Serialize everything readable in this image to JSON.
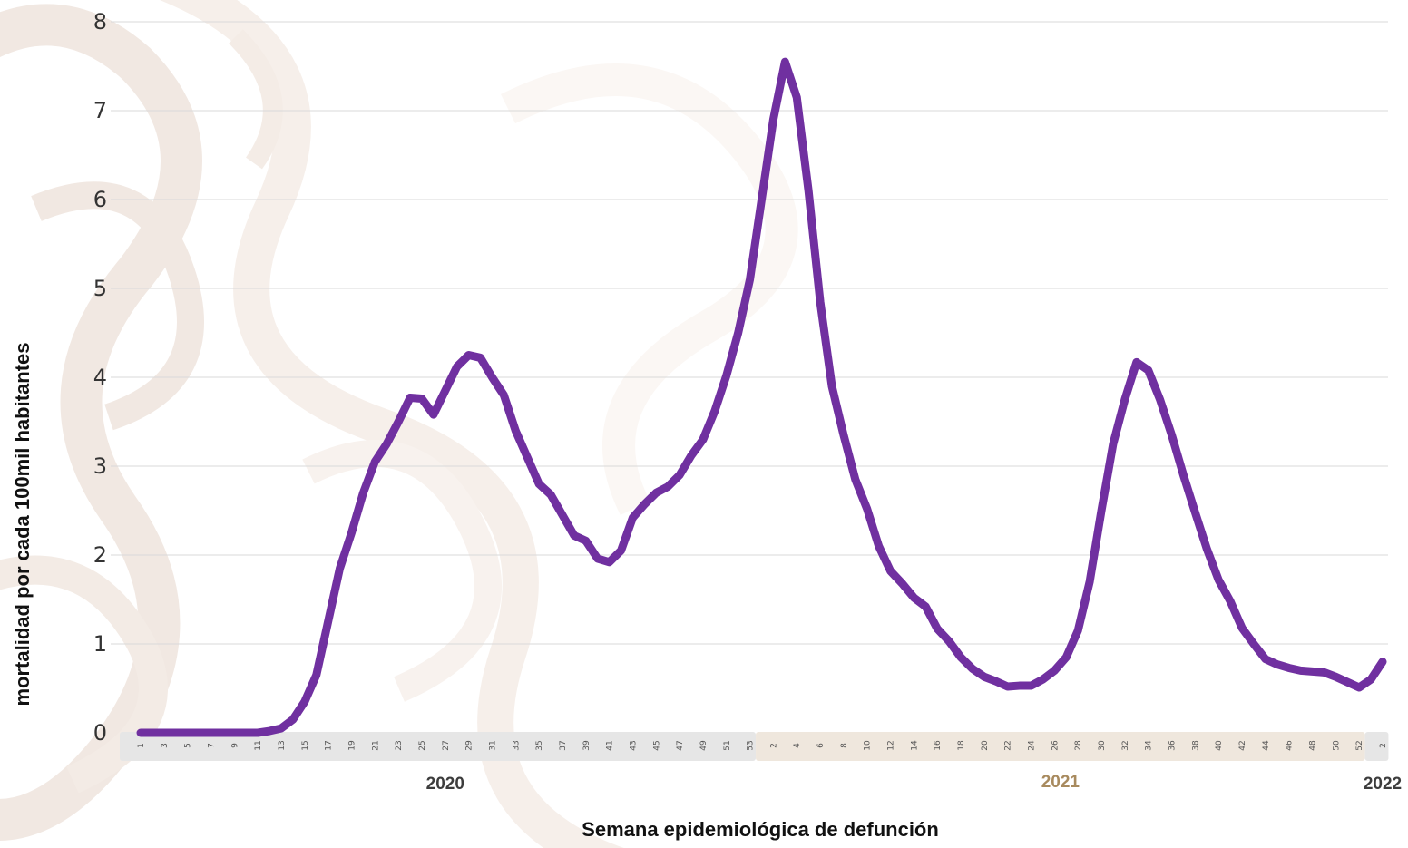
{
  "chart_data": {
    "type": "line",
    "title": "",
    "xlabel": "Semana epidemiológica de defunción",
    "ylabel": "mortalidad por cada 100mil habitantes",
    "ylim": [
      0,
      8
    ],
    "yticks": [
      0,
      1,
      2,
      3,
      4,
      5,
      6,
      7,
      8
    ],
    "grid": true,
    "line_color": "#7030A0",
    "years": [
      {
        "label": "2020",
        "color": "#3d3d3d",
        "band_color": "#e6e6e6",
        "weeks": 53
      },
      {
        "label": "2021",
        "color": "#a88a5e",
        "band_color": "#efe7dd",
        "weeks": 52
      },
      {
        "label": "2022",
        "color": "#3d3d3d",
        "band_color": "#e6e6e6",
        "weeks": 2
      }
    ],
    "series": [
      {
        "values": [
          0,
          0,
          0,
          0,
          0,
          0,
          0,
          0,
          0,
          0,
          0,
          0.02,
          0.05,
          0.15,
          0.35,
          0.65,
          1.25,
          1.85,
          2.25,
          2.7,
          3.05,
          3.25,
          3.5,
          3.77,
          3.76,
          3.58,
          3.85,
          4.12,
          4.25,
          4.22,
          4.0,
          3.8,
          3.4,
          3.1,
          2.8,
          2.68,
          2.45,
          2.22,
          2.16,
          1.96,
          1.92,
          2.05,
          2.42,
          2.57,
          2.7,
          2.77,
          2.9,
          3.12,
          3.3,
          3.62,
          4.02,
          4.5,
          5.1,
          6.0,
          6.9,
          7.55,
          7.15,
          6.1,
          4.85,
          3.9,
          3.35,
          2.85,
          2.52,
          2.1,
          1.82,
          1.68,
          1.52,
          1.42,
          1.17,
          1.03,
          0.85,
          0.72,
          0.63,
          0.58,
          0.52,
          0.53,
          0.53,
          0.6,
          0.7,
          0.85,
          1.15,
          1.7,
          2.5,
          3.25,
          3.75,
          4.17,
          4.08,
          3.75,
          3.35,
          2.9,
          2.48,
          2.07,
          1.72,
          1.48,
          1.18,
          1.0,
          0.83,
          0.77,
          0.73,
          0.7,
          0.69,
          0.68,
          0.63,
          0.57,
          0.51,
          0.6,
          0.8
        ]
      }
    ]
  }
}
